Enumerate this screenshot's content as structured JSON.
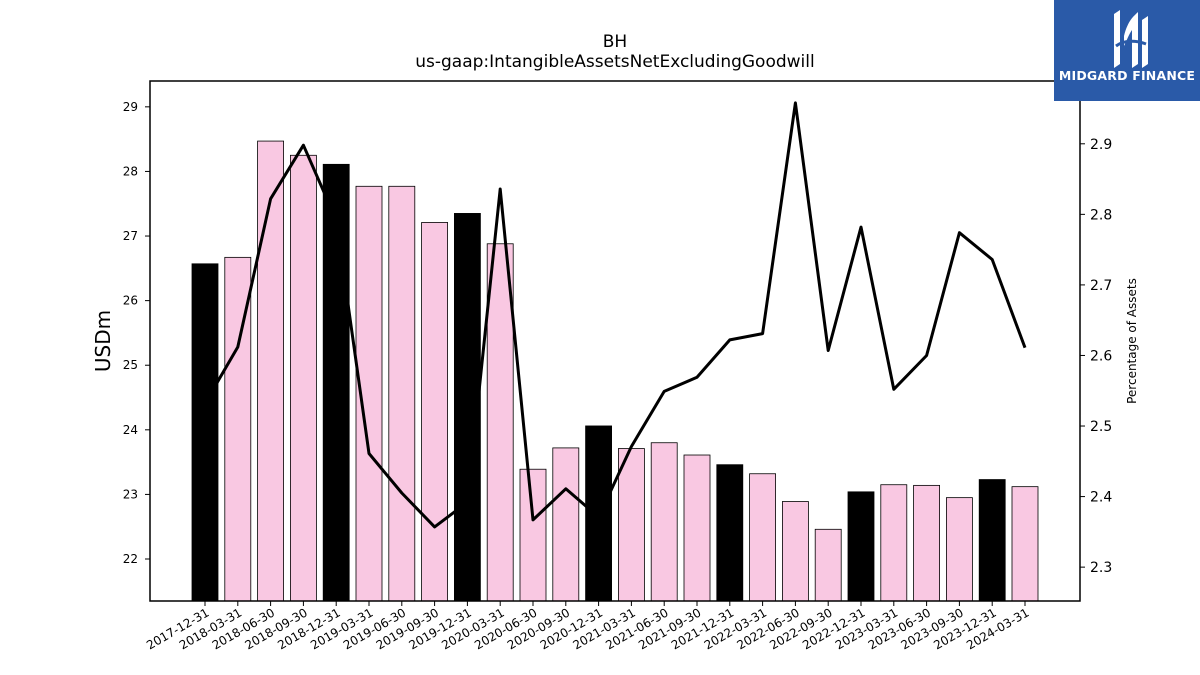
{
  "chart_data": {
    "type": "bar",
    "title": "BH",
    "subtitle": "us-gaap:IntangibleAssetsNetExcludingGoodwill",
    "ylabel": "USDm",
    "y2label": "Percentage of Assets",
    "ylim": [
      21.35,
      29.4
    ],
    "y2lim": [
      2.252,
      2.989
    ],
    "yticks": [
      22,
      23,
      24,
      25,
      26,
      27,
      28,
      29
    ],
    "y2ticks": [
      "2.3",
      "2.4",
      "2.5",
      "2.6",
      "2.7",
      "2.8",
      "2.9"
    ],
    "categories": [
      "2017-12-31",
      "2018-03-31",
      "2018-06-30",
      "2018-09-30",
      "2018-12-31",
      "2019-03-31",
      "2019-06-30",
      "2019-09-30",
      "2019-12-31",
      "2020-03-31",
      "2020-06-30",
      "2020-09-30",
      "2020-12-31",
      "2021-03-31",
      "2021-06-30",
      "2021-09-30",
      "2021-12-31",
      "2022-03-31",
      "2022-06-30",
      "2022-09-30",
      "2022-12-31",
      "2023-03-31",
      "2023-06-30",
      "2023-09-30",
      "2023-12-31",
      "2024-03-31"
    ],
    "series": [
      {
        "kind": "bar",
        "axis": "left",
        "values": [
          26.57,
          26.67,
          28.47,
          28.25,
          28.11,
          27.77,
          27.77,
          27.21,
          27.35,
          26.88,
          23.39,
          23.72,
          24.06,
          23.71,
          23.8,
          23.61,
          23.46,
          23.32,
          22.89,
          22.46,
          23.04,
          23.15,
          23.14,
          22.95,
          23.23,
          23.12
        ],
        "colors": [
          "#000000",
          "#f9c8e2",
          "#f9c8e2",
          "#f9c8e2",
          "#000000",
          "#f9c8e2",
          "#f9c8e2",
          "#f9c8e2",
          "#000000",
          "#f9c8e2",
          "#f9c8e2",
          "#f9c8e2",
          "#000000",
          "#f9c8e2",
          "#f9c8e2",
          "#f9c8e2",
          "#000000",
          "#f9c8e2",
          "#f9c8e2",
          "#f9c8e2",
          "#000000",
          "#f9c8e2",
          "#f9c8e2",
          "#f9c8e2",
          "#000000",
          "#f9c8e2"
        ]
      },
      {
        "kind": "line",
        "axis": "right",
        "color": "#000000",
        "values": [
          2.532,
          2.612,
          2.822,
          2.898,
          2.792,
          2.461,
          2.405,
          2.357,
          2.392,
          2.836,
          2.367,
          2.411,
          2.371,
          2.471,
          2.549,
          2.569,
          2.622,
          2.631,
          2.958,
          2.607,
          2.782,
          2.552,
          2.6,
          2.774,
          2.736,
          2.611
        ]
      }
    ]
  },
  "logo": {
    "text": "MIDGARD FINANCE",
    "background": "#2a5aa8"
  }
}
